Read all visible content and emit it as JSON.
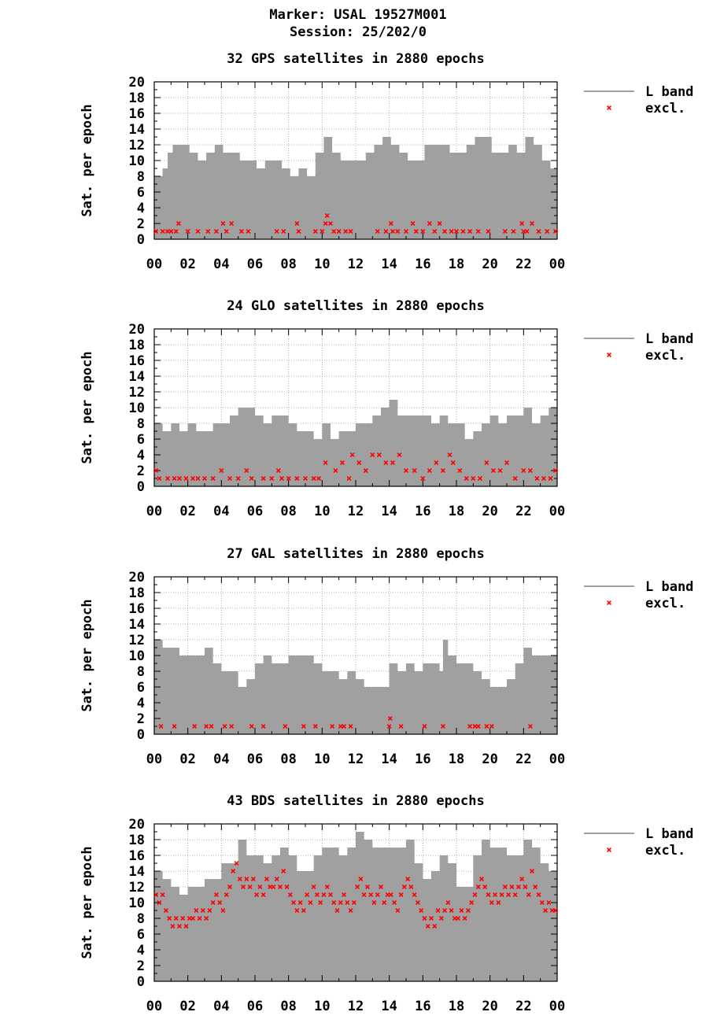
{
  "header": {
    "marker": "Marker: USAL 19527M001",
    "session": "Session: 25/202/0"
  },
  "colors": {
    "band": "#a0a0a0",
    "excl": "#ff0000",
    "grid": "#999999",
    "axis": "#000000"
  },
  "chart_data": [
    {
      "type": "area",
      "title": "32 GPS satellites in 2880 epochs",
      "ylabel": "Sat. per epoch",
      "ylim": [
        0,
        20
      ],
      "xlim": [
        0,
        24
      ],
      "yticks": [
        "0",
        "2",
        "4",
        "6",
        "8",
        "10",
        "12",
        "14",
        "16",
        "18",
        "20"
      ],
      "xticks": [
        "00",
        "02",
        "04",
        "06",
        "08",
        "10",
        "12",
        "14",
        "16",
        "18",
        "20",
        "22",
        "00"
      ],
      "grid": true,
      "legend_position": "right",
      "series": [
        {
          "name": "L band",
          "x": [
            0,
            0.5,
            0.8,
            1.1,
            1.6,
            2.1,
            2.6,
            3.1,
            3.6,
            4.1,
            4.6,
            5.1,
            5.6,
            6.1,
            6.6,
            7.1,
            7.6,
            8.1,
            8.6,
            9.1,
            9.6,
            10.1,
            10.6,
            11.1,
            11.6,
            12.1,
            12.6,
            13.1,
            13.6,
            14.1,
            14.6,
            15.1,
            15.6,
            16.1,
            16.6,
            17.1,
            17.6,
            18.1,
            18.6,
            19.1,
            19.6,
            20.1,
            20.6,
            21.1,
            21.6,
            22.1,
            22.6,
            23.1,
            23.6,
            24
          ],
          "y": [
            8,
            9,
            11,
            12,
            12,
            11,
            10,
            11,
            12,
            11,
            11,
            10,
            10,
            9,
            10,
            10,
            9,
            8,
            9,
            8,
            11,
            13,
            11,
            10,
            10,
            10,
            11,
            12,
            13,
            12,
            11,
            10,
            10,
            12,
            12,
            12,
            11,
            11,
            12,
            13,
            13,
            11,
            11,
            12,
            11,
            13,
            12,
            10,
            9,
            9
          ]
        },
        {
          "name": "excl.",
          "x": [
            0.1,
            0.5,
            0.8,
            1.0,
            1.3,
            1.45,
            2.0,
            2.6,
            3.2,
            3.7,
            4.1,
            4.3,
            4.6,
            5.2,
            5.6,
            7.3,
            7.7,
            8.5,
            8.6,
            9.6,
            10.0,
            10.2,
            10.3,
            10.5,
            10.7,
            11.0,
            11.4,
            11.7,
            13.3,
            13.8,
            14.1,
            14.2,
            14.5,
            15.0,
            15.4,
            15.6,
            16.0,
            16.4,
            16.7,
            17.0,
            17.3,
            17.7,
            18.0,
            18.4,
            18.8,
            19.3,
            19.9,
            20.9,
            21.4,
            21.9,
            22.0,
            22.2,
            22.5,
            22.9,
            23.4,
            23.9
          ],
          "y": [
            1,
            1,
            1,
            1,
            1,
            2,
            1,
            1,
            1,
            1,
            2,
            1,
            2,
            1,
            1,
            1,
            1,
            2,
            1,
            1,
            1,
            2,
            3,
            2,
            1,
            1,
            1,
            1,
            1,
            1,
            2,
            1,
            1,
            1,
            2,
            1,
            1,
            2,
            1,
            2,
            1,
            1,
            1,
            1,
            1,
            1,
            1,
            1,
            1,
            2,
            1,
            1,
            2,
            1,
            1,
            1
          ]
        }
      ]
    },
    {
      "type": "area",
      "title": "24 GLO satellites in 2880 epochs",
      "ylabel": "Sat. per epoch",
      "ylim": [
        0,
        20
      ],
      "xlim": [
        0,
        24
      ],
      "yticks": [
        "0",
        "2",
        "4",
        "6",
        "8",
        "10",
        "12",
        "14",
        "16",
        "18",
        "20"
      ],
      "xticks": [
        "00",
        "02",
        "04",
        "06",
        "08",
        "10",
        "12",
        "14",
        "16",
        "18",
        "20",
        "22",
        "00"
      ],
      "grid": true,
      "legend_position": "right",
      "series": [
        {
          "name": "L band",
          "x": [
            0,
            0.5,
            1.0,
            1.5,
            2.0,
            2.5,
            3.0,
            3.5,
            4.0,
            4.5,
            5.0,
            5.5,
            6.0,
            6.5,
            7.0,
            7.5,
            8.0,
            8.5,
            9.0,
            9.5,
            10.0,
            10.5,
            11.0,
            11.5,
            12.0,
            12.5,
            13.0,
            13.5,
            14.0,
            14.5,
            15.0,
            15.5,
            16.0,
            16.5,
            17.0,
            17.5,
            18.0,
            18.5,
            19.0,
            19.5,
            20.0,
            20.5,
            21.0,
            21.5,
            22.0,
            22.5,
            23.0,
            23.5,
            24
          ],
          "y": [
            8,
            7,
            8,
            7,
            8,
            7,
            7,
            8,
            8,
            9,
            10,
            10,
            9,
            8,
            9,
            9,
            8,
            7,
            7,
            6,
            8,
            6,
            7,
            7,
            8,
            8,
            9,
            10,
            11,
            9,
            9,
            9,
            9,
            8,
            9,
            8,
            8,
            6,
            7,
            8,
            9,
            8,
            9,
            9,
            10,
            8,
            9,
            10,
            11
          ]
        },
        {
          "name": "excl.",
          "x": [
            0.1,
            0.3,
            0.8,
            1.2,
            1.5,
            1.9,
            2.3,
            2.6,
            3.0,
            3.5,
            4.0,
            4.5,
            5.0,
            5.5,
            5.8,
            6.5,
            7.0,
            7.4,
            7.6,
            8.0,
            8.5,
            9.0,
            9.5,
            9.8,
            10.2,
            10.8,
            11.2,
            11.6,
            11.8,
            12.2,
            12.6,
            13.0,
            13.4,
            13.8,
            14.2,
            14.6,
            15.0,
            15.5,
            16.0,
            16.4,
            16.8,
            17.2,
            17.6,
            17.8,
            18.2,
            18.6,
            19.0,
            19.4,
            19.8,
            20.2,
            20.6,
            21.0,
            21.5,
            22.0,
            22.4,
            22.8,
            23.2,
            23.6,
            23.9
          ],
          "y": [
            2,
            1,
            1,
            1,
            1,
            1,
            1,
            1,
            1,
            1,
            2,
            1,
            1,
            2,
            1,
            1,
            1,
            2,
            1,
            1,
            1,
            1,
            1,
            1,
            3,
            2,
            3,
            1,
            4,
            3,
            2,
            4,
            4,
            3,
            3,
            4,
            2,
            2,
            1,
            2,
            3,
            2,
            4,
            3,
            2,
            1,
            1,
            1,
            3,
            2,
            2,
            3,
            1,
            2,
            2,
            1,
            1,
            1,
            2
          ]
        }
      ]
    },
    {
      "type": "area",
      "title": "27 GAL satellites in 2880 epochs",
      "ylabel": "Sat. per epoch",
      "ylim": [
        0,
        20
      ],
      "xlim": [
        0,
        24
      ],
      "yticks": [
        "0",
        "2",
        "4",
        "6",
        "8",
        "10",
        "12",
        "14",
        "16",
        "18",
        "20"
      ],
      "xticks": [
        "00",
        "02",
        "04",
        "06",
        "08",
        "10",
        "12",
        "14",
        "16",
        "18",
        "20",
        "22",
        "00"
      ],
      "grid": true,
      "legend_position": "right",
      "series": [
        {
          "name": "L band",
          "x": [
            0,
            0.5,
            1.0,
            1.5,
            2.0,
            2.5,
            3.0,
            3.5,
            4.0,
            4.5,
            5.0,
            5.5,
            6.0,
            6.5,
            7.0,
            7.5,
            8.0,
            8.5,
            9.0,
            9.5,
            10.0,
            10.5,
            11.0,
            11.5,
            12.0,
            12.5,
            13.0,
            13.5,
            14.0,
            14.5,
            15.0,
            15.5,
            16.0,
            16.5,
            17.0,
            17.2,
            17.5,
            18.0,
            18.5,
            19.0,
            19.5,
            20.0,
            20.5,
            21.0,
            21.5,
            22.0,
            22.5,
            23.0,
            23.5,
            24
          ],
          "y": [
            12,
            11,
            11,
            10,
            10,
            10,
            11,
            9,
            8,
            8,
            6,
            7,
            9,
            10,
            9,
            9,
            10,
            10,
            10,
            9,
            8,
            8,
            7,
            8,
            7,
            6,
            6,
            6,
            9,
            8,
            9,
            8,
            9,
            9,
            8,
            12,
            10,
            9,
            9,
            8,
            7,
            6,
            6,
            7,
            9,
            11,
            10,
            10,
            10,
            10
          ]
        },
        {
          "name": "excl.",
          "x": [
            0.4,
            1.2,
            2.4,
            3.1,
            3.4,
            4.2,
            4.6,
            5.8,
            6.5,
            7.8,
            8.9,
            9.6,
            10.6,
            11.1,
            11.3,
            11.7,
            14.0,
            14.05,
            14.7,
            16.1,
            17.2,
            18.8,
            19.1,
            19.3,
            19.8,
            20.1,
            22.4
          ],
          "y": [
            1,
            1,
            1,
            1,
            1,
            1,
            1,
            1,
            1,
            1,
            1,
            1,
            1,
            1,
            1,
            1,
            1,
            2,
            1,
            1,
            1,
            1,
            1,
            1,
            1,
            1,
            1
          ]
        }
      ]
    },
    {
      "type": "area",
      "title": "43 BDS satellites in 2880 epochs",
      "ylabel": "Sat. per epoch",
      "ylim": [
        0,
        20
      ],
      "xlim": [
        0,
        24
      ],
      "yticks": [
        "0",
        "2",
        "4",
        "6",
        "8",
        "10",
        "12",
        "14",
        "16",
        "18",
        "20"
      ],
      "xticks": [
        "00",
        "02",
        "04",
        "06",
        "08",
        "10",
        "12",
        "14",
        "16",
        "18",
        "20",
        "22",
        "00"
      ],
      "grid": true,
      "legend_position": "right",
      "series": [
        {
          "name": "L band",
          "x": [
            0,
            0.5,
            1.0,
            1.5,
            2.0,
            2.5,
            3.0,
            3.5,
            4.0,
            4.5,
            5.0,
            5.5,
            6.0,
            6.5,
            7.0,
            7.5,
            8.0,
            8.5,
            9.0,
            9.5,
            10.0,
            10.5,
            11.0,
            11.5,
            12.0,
            12.5,
            13.0,
            13.5,
            14.0,
            14.5,
            15.0,
            15.5,
            16.0,
            16.5,
            17.0,
            17.5,
            18.0,
            18.5,
            19.0,
            19.5,
            20.0,
            20.5,
            21.0,
            21.5,
            22.0,
            22.5,
            23.0,
            23.5,
            24
          ],
          "y": [
            14,
            13,
            12,
            11,
            12,
            12,
            13,
            13,
            15,
            15,
            18,
            16,
            16,
            15,
            16,
            17,
            16,
            14,
            14,
            16,
            17,
            17,
            16,
            17,
            19,
            18,
            17,
            17,
            17,
            17,
            18,
            15,
            13,
            14,
            16,
            15,
            12,
            12,
            16,
            18,
            17,
            17,
            16,
            16,
            18,
            17,
            15,
            14,
            12
          ]
        },
        {
          "name": "excl.",
          "x": [
            0.1,
            0.3,
            0.5,
            0.7,
            0.9,
            1.1,
            1.3,
            1.5,
            1.7,
            1.9,
            2.1,
            2.3,
            2.5,
            2.7,
            2.9,
            3.1,
            3.3,
            3.5,
            3.7,
            3.9,
            4.1,
            4.3,
            4.5,
            4.7,
            4.9,
            5.1,
            5.3,
            5.5,
            5.7,
            5.9,
            6.1,
            6.3,
            6.5,
            6.7,
            6.9,
            7.1,
            7.3,
            7.5,
            7.7,
            7.9,
            8.1,
            8.3,
            8.5,
            8.7,
            8.9,
            9.1,
            9.3,
            9.5,
            9.7,
            9.9,
            10.1,
            10.3,
            10.5,
            10.7,
            10.9,
            11.1,
            11.3,
            11.5,
            11.7,
            11.9,
            12.1,
            12.3,
            12.5,
            12.7,
            12.9,
            13.1,
            13.3,
            13.5,
            13.7,
            13.9,
            14.1,
            14.3,
            14.5,
            14.7,
            14.9,
            15.1,
            15.3,
            15.5,
            15.7,
            15.9,
            16.1,
            16.3,
            16.5,
            16.7,
            16.9,
            17.1,
            17.3,
            17.5,
            17.7,
            17.9,
            18.1,
            18.3,
            18.5,
            18.7,
            18.9,
            19.1,
            19.3,
            19.5,
            19.7,
            19.9,
            20.1,
            20.3,
            20.5,
            20.7,
            20.9,
            21.1,
            21.3,
            21.5,
            21.7,
            21.9,
            22.1,
            22.3,
            22.5,
            22.7,
            22.9,
            23.1,
            23.3,
            23.5,
            23.7,
            23.9
          ],
          "y": [
            11,
            10,
            11,
            9,
            8,
            7,
            8,
            7,
            8,
            7,
            8,
            8,
            9,
            8,
            9,
            8,
            9,
            10,
            11,
            10,
            9,
            11,
            12,
            14,
            15,
            13,
            12,
            13,
            12,
            13,
            11,
            12,
            11,
            13,
            12,
            12,
            13,
            12,
            14,
            12,
            11,
            10,
            9,
            10,
            9,
            11,
            10,
            12,
            11,
            10,
            11,
            12,
            11,
            10,
            9,
            10,
            11,
            10,
            9,
            10,
            12,
            13,
            11,
            12,
            11,
            10,
            11,
            12,
            10,
            11,
            11,
            10,
            9,
            11,
            12,
            13,
            12,
            11,
            10,
            9,
            8,
            7,
            8,
            7,
            9,
            8,
            9,
            10,
            9,
            8,
            8,
            9,
            8,
            9,
            10,
            11,
            12,
            13,
            12,
            11,
            10,
            11,
            10,
            11,
            12,
            11,
            12,
            11,
            12,
            13,
            12,
            11,
            14,
            12,
            11,
            10,
            9,
            10,
            9,
            9
          ]
        }
      ]
    }
  ]
}
